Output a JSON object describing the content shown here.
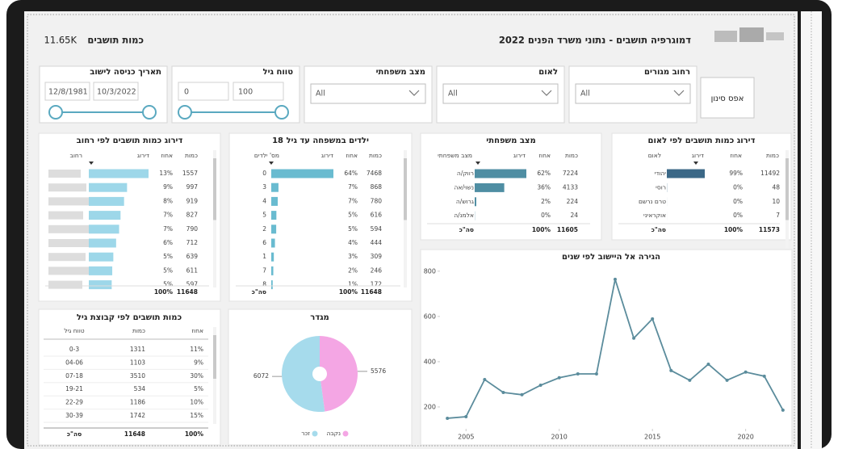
{
  "header": {
    "title": "דמוגרפיה תושבים - נתוני משרד הפנים 2022",
    "kpi_label": "כמות תושבים",
    "kpi_value": "11.65K"
  },
  "filters": {
    "reset": "אפס סינון",
    "dropdowns": [
      {
        "label": "רחוב מגורים",
        "value": "All"
      },
      {
        "label": "לאום",
        "value": "All"
      },
      {
        "label": "מצב משפחתי",
        "value": "All"
      }
    ],
    "age_range": {
      "label": "טווח גיל",
      "min": 0,
      "max": 100
    },
    "entry_date": {
      "label": "תאריך כניסה לישוב",
      "from": "12/8/1981",
      "to": "10/3/2022"
    }
  },
  "nationality": {
    "title": "דירוג כמות תושבים לפי לאום",
    "columns": [
      "לאום",
      "דירוג",
      "אחוז",
      "כמות"
    ],
    "rows": [
      {
        "label": "יהודי",
        "percent": "99%",
        "count": 11492
      },
      {
        "label": "רוסי",
        "percent": "0%",
        "count": 48
      },
      {
        "label": "טרם נרשם",
        "percent": "0%",
        "count": 10
      },
      {
        "label": "אוקראיני",
        "percent": "0%",
        "count": 7
      }
    ],
    "total": {
      "label": "סה\"כ",
      "percent": "100%",
      "count": 11573
    }
  },
  "marital": {
    "title": "מצב משפחתי",
    "columns": [
      "מצב משפחתי",
      "דירוג",
      "אחוז",
      "כמות"
    ],
    "rows": [
      {
        "label": "רווק/ה",
        "percent": "62%",
        "count": 7224
      },
      {
        "label": "נשוי/אה",
        "percent": "36%",
        "count": 4133
      },
      {
        "label": "גרוש/ה",
        "percent": "2%",
        "count": 224
      },
      {
        "label": "אלמנ/ה",
        "percent": "0%",
        "count": 24
      }
    ],
    "total": {
      "label": "סה\"כ",
      "percent": "100%",
      "count": 11605
    }
  },
  "children": {
    "title": "ילדים במשפחה עד גיל 18",
    "columns": [
      "מס' ילדים",
      "דירוג",
      "אחוז",
      "כמות"
    ],
    "rows": [
      {
        "label": "0",
        "percent": "64%",
        "count": 7468
      },
      {
        "label": "3",
        "percent": "7%",
        "count": 868
      },
      {
        "label": "4",
        "percent": "7%",
        "count": 780
      },
      {
        "label": "5",
        "percent": "5%",
        "count": 616
      },
      {
        "label": "2",
        "percent": "5%",
        "count": 594
      },
      {
        "label": "6",
        "percent": "4%",
        "count": 444
      },
      {
        "label": "1",
        "percent": "3%",
        "count": 309
      },
      {
        "label": "7",
        "percent": "2%",
        "count": 246
      },
      {
        "label": "8",
        "percent": "1%",
        "count": 172
      }
    ],
    "total": {
      "label": "סה\"כ",
      "percent": "100%",
      "count": 11648
    }
  },
  "streets": {
    "title": "דירוג כמות תושבים לפי רחוב",
    "columns": [
      "רחוב",
      "דירוג",
      "אחוז",
      "כמות"
    ],
    "rows": [
      {
        "percent": "13%",
        "count": 1557
      },
      {
        "percent": "9%",
        "count": 997
      },
      {
        "percent": "8%",
        "count": 919
      },
      {
        "percent": "7%",
        "count": 827
      },
      {
        "percent": "7%",
        "count": 790
      },
      {
        "percent": "6%",
        "count": 712
      },
      {
        "percent": "5%",
        "count": 639
      },
      {
        "percent": "5%",
        "count": 611
      },
      {
        "percent": "5%",
        "count": 597
      }
    ],
    "total": {
      "percent": "100%",
      "count": 11648
    }
  },
  "age_groups": {
    "title": "כמות תושבים לפי קבוצת גיל",
    "columns": [
      "טווח גיל",
      "כמות",
      "אחוז"
    ],
    "rows": [
      {
        "range": "0-3",
        "count": 1311,
        "percent": "11%"
      },
      {
        "range": "04-06",
        "count": 1103,
        "percent": "9%"
      },
      {
        "range": "07-18",
        "count": 3510,
        "percent": "30%"
      },
      {
        "range": "19-21",
        "count": 534,
        "percent": "5%"
      },
      {
        "range": "22-29",
        "count": 1186,
        "percent": "10%"
      },
      {
        "range": "30-39",
        "count": 1742,
        "percent": "15%"
      }
    ],
    "total": {
      "label": "סה\"כ",
      "count": 11648,
      "percent": "100%"
    }
  },
  "gender": {
    "type": "pie",
    "title": "מגדר",
    "categories": [
      "זכר",
      "נקבה"
    ],
    "values": [
      6072,
      5576
    ],
    "colors": [
      "#a6dbec",
      "#f4a6e4"
    ]
  },
  "migration": {
    "type": "line",
    "title": "הגירה אל היישוב לפי שנים",
    "x": [
      2004,
      2005,
      2006,
      2007,
      2008,
      2009,
      2010,
      2011,
      2012,
      2013,
      2014,
      2015,
      2016,
      2017,
      2018,
      2019,
      2020,
      2021,
      2022
    ],
    "values": [
      150,
      157,
      321,
      264,
      254,
      296,
      329,
      346,
      346,
      764,
      504,
      589,
      361,
      318,
      389,
      318,
      354,
      336,
      186
    ],
    "xlim": [
      2003.3,
      2022.7
    ],
    "ylim": [
      107,
      835
    ],
    "xticks": [
      2005,
      2010,
      2015,
      2020
    ],
    "yticks": [
      200,
      400,
      600,
      800
    ],
    "color": "#5b8c9c"
  }
}
